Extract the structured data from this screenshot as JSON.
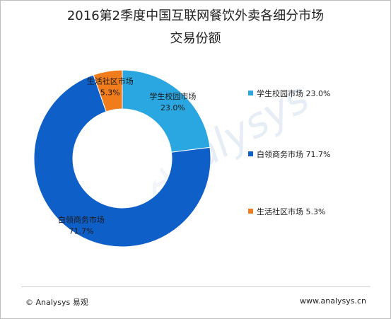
{
  "chart_data": {
    "type": "pie",
    "variant": "donut",
    "title": "2016第2季度中国互联网餐饮外卖各细分市场",
    "subtitle": "交易份额",
    "slices": [
      {
        "label": "学生校园市场",
        "value": 23.0,
        "value_text": "23.0%",
        "color": "#2aa6e0"
      },
      {
        "label": "白领商务市场",
        "value": 71.7,
        "value_text": "71.7%",
        "color": "#0f5fc8"
      },
      {
        "label": "生活社区市场",
        "value": 5.3,
        "value_text": "5.3%",
        "color": "#f07c1c"
      }
    ],
    "legend_position": "right"
  },
  "legend": [
    {
      "label": "学生校园市场",
      "value": "23.0%"
    },
    {
      "label": "白领商务市场",
      "value": "71.7%"
    },
    {
      "label": "生活社区市场",
      "value": "5.3%"
    }
  ],
  "watermark": "Analysys",
  "footer": {
    "copyright": "© Analysys 易观",
    "website": "www.analysys.cn"
  }
}
